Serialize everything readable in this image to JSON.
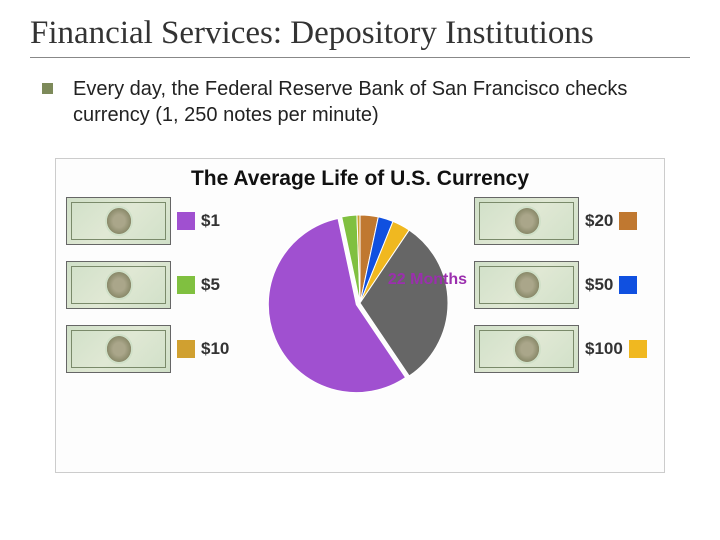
{
  "title": "Financial Services: Depository Institutions",
  "bullet": "Every day, the Federal Reserve Bank of San Francisco checks currency (1, 250 notes per minute)",
  "chart": {
    "title": "The Average Life of U.S. Currency",
    "center_label": "22 Months",
    "center_label_color": "#9b2fae",
    "title_fontsize": 21,
    "label_fontsize": 17,
    "pie": {
      "type": "pie",
      "radius": 88,
      "background_color": "#ffffff",
      "slices": [
        {
          "start_deg": 0,
          "end_deg": 12,
          "color": "#c07830"
        },
        {
          "start_deg": 12,
          "end_deg": 22,
          "color": "#1050e0"
        },
        {
          "start_deg": 22,
          "end_deg": 34,
          "color": "#f0b820"
        },
        {
          "start_deg": 34,
          "end_deg": 146,
          "color": "#666666"
        },
        {
          "start_deg": 146,
          "end_deg": 348,
          "color": "#a050d0"
        },
        {
          "start_deg": 348,
          "end_deg": 358,
          "color": "#80c040"
        },
        {
          "start_deg": 358,
          "end_deg": 360,
          "color": "#d0a030"
        }
      ],
      "outline_color": "#ffffff"
    },
    "left": [
      {
        "label": "$1",
        "swatch": "#a050d0"
      },
      {
        "label": "$5",
        "swatch": "#80c040"
      },
      {
        "label": "$10",
        "swatch": "#d0a030"
      }
    ],
    "right": [
      {
        "label": "$20",
        "swatch": "#c07830"
      },
      {
        "label": "$50",
        "swatch": "#1050e0"
      },
      {
        "label": "$100",
        "swatch": "#f0b820"
      }
    ]
  }
}
